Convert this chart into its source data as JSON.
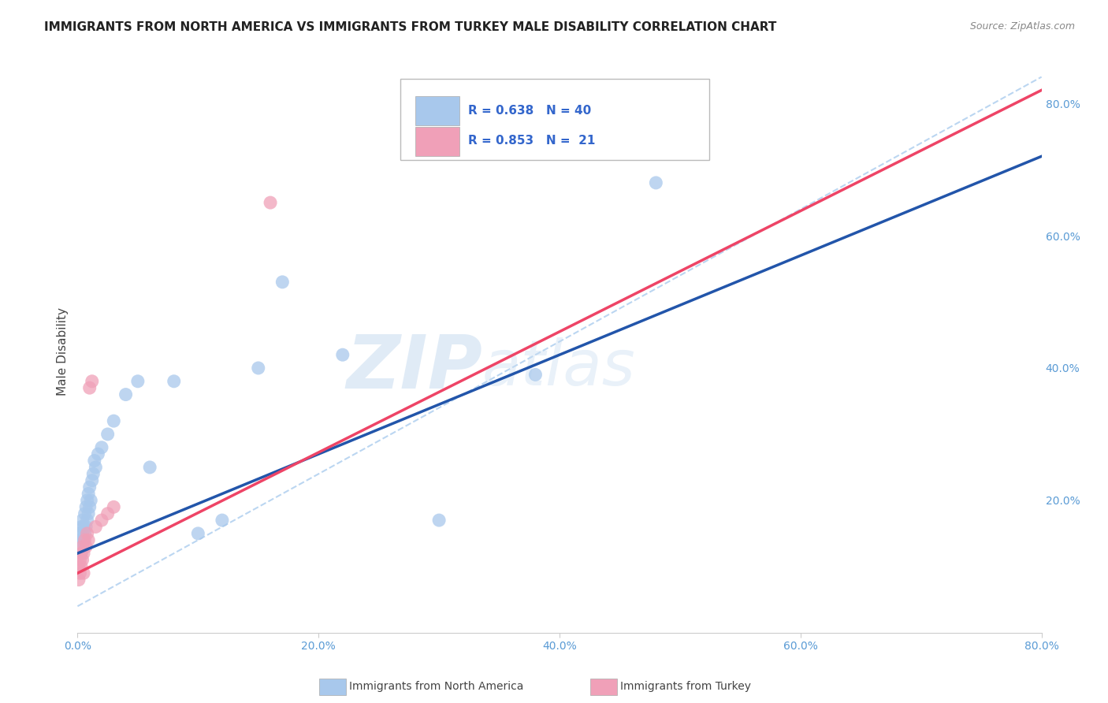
{
  "title": "IMMIGRANTS FROM NORTH AMERICA VS IMMIGRANTS FROM TURKEY MALE DISABILITY CORRELATION CHART",
  "source": "Source: ZipAtlas.com",
  "ylabel": "Male Disability",
  "legend_blue_r": "R = 0.638",
  "legend_blue_n": "N = 40",
  "legend_pink_r": "R = 0.853",
  "legend_pink_n": "N =  21",
  "legend1_label": "Immigrants from North America",
  "legend2_label": "Immigrants from Turkey",
  "blue_color": "#A8C8EC",
  "blue_line_color": "#2255AA",
  "pink_color": "#F0A0B8",
  "pink_line_color": "#EE4466",
  "dashed_line_color": "#AACCEE",
  "watermark_zip": "ZIP",
  "watermark_atlas": "atlas",
  "blue_scatter_x": [
    0.001,
    0.002,
    0.002,
    0.003,
    0.003,
    0.004,
    0.004,
    0.005,
    0.005,
    0.006,
    0.006,
    0.007,
    0.007,
    0.008,
    0.008,
    0.009,
    0.009,
    0.01,
    0.01,
    0.011,
    0.012,
    0.013,
    0.014,
    0.015,
    0.017,
    0.02,
    0.025,
    0.03,
    0.04,
    0.05,
    0.06,
    0.08,
    0.1,
    0.12,
    0.15,
    0.17,
    0.22,
    0.3,
    0.38,
    0.48
  ],
  "blue_scatter_y": [
    0.14,
    0.15,
    0.13,
    0.16,
    0.12,
    0.15,
    0.17,
    0.14,
    0.16,
    0.15,
    0.18,
    0.16,
    0.19,
    0.17,
    0.2,
    0.18,
    0.21,
    0.19,
    0.22,
    0.2,
    0.23,
    0.24,
    0.26,
    0.25,
    0.27,
    0.28,
    0.3,
    0.32,
    0.36,
    0.38,
    0.25,
    0.38,
    0.15,
    0.17,
    0.4,
    0.53,
    0.42,
    0.17,
    0.39,
    0.68
  ],
  "pink_scatter_x": [
    0.001,
    0.001,
    0.002,
    0.002,
    0.003,
    0.003,
    0.004,
    0.004,
    0.005,
    0.005,
    0.006,
    0.007,
    0.008,
    0.009,
    0.01,
    0.012,
    0.015,
    0.02,
    0.025,
    0.03,
    0.16
  ],
  "pink_scatter_y": [
    0.08,
    0.1,
    0.09,
    0.11,
    0.1,
    0.12,
    0.11,
    0.13,
    0.09,
    0.12,
    0.14,
    0.13,
    0.15,
    0.14,
    0.37,
    0.38,
    0.16,
    0.17,
    0.18,
    0.19,
    0.65
  ],
  "xlim": [
    0.0,
    0.8
  ],
  "ylim": [
    0.0,
    0.85
  ],
  "xticks": [
    0.0,
    0.2,
    0.4,
    0.6,
    0.8
  ],
  "xticklabels": [
    "0.0%",
    "20.0%",
    "40.0%",
    "60.0%",
    "80.0%"
  ],
  "yticks_right": [
    0.2,
    0.4,
    0.6,
    0.8
  ],
  "yticklabels_right": [
    "20.0%",
    "40.0%",
    "60.0%",
    "80.0%"
  ],
  "blue_regline": [
    0.0,
    0.8
  ],
  "blue_regline_y": [
    0.12,
    0.72
  ],
  "pink_regline": [
    0.0,
    0.8
  ],
  "pink_regline_y": [
    0.09,
    0.82
  ],
  "dashed_line_x": [
    0.0,
    0.8
  ],
  "dashed_line_y": [
    0.04,
    0.84
  ]
}
